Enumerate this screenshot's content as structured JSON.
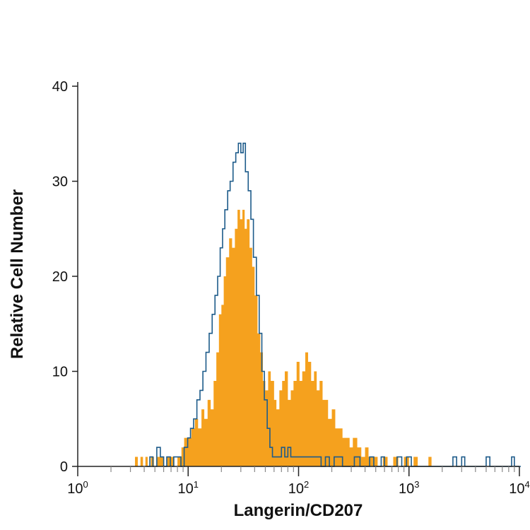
{
  "chart_data": {
    "type": "histogram",
    "xlabel": "Langerin/CD207",
    "ylabel": "Relative Cell Number",
    "x_scale": "log",
    "xlim": [
      1,
      10000
    ],
    "ylim": [
      0,
      40
    ],
    "x_ticks": [
      {
        "value": 1,
        "base": "10",
        "exp": "0"
      },
      {
        "value": 10,
        "base": "10",
        "exp": "1"
      },
      {
        "value": 100,
        "base": "10",
        "exp": "2"
      },
      {
        "value": 1000,
        "base": "10",
        "exp": "3"
      },
      {
        "value": 10000,
        "base": "10",
        "exp": "4"
      }
    ],
    "y_ticks": [
      "0",
      "10",
      "20",
      "30",
      "40"
    ],
    "colors": {
      "filled": "#f5a11e",
      "outline": "#1d5b8a"
    },
    "series": [
      {
        "style": "filled",
        "points": [
          [
            3.2,
            0
          ],
          [
            3.3,
            1
          ],
          [
            3.5,
            0
          ],
          [
            3.7,
            1
          ],
          [
            3.9,
            0
          ],
          [
            4.1,
            1
          ],
          [
            4.3,
            0
          ],
          [
            4.6,
            1
          ],
          [
            4.9,
            0
          ],
          [
            5.2,
            1
          ],
          [
            5.6,
            1
          ],
          [
            6.0,
            0
          ],
          [
            6.4,
            1
          ],
          [
            7.0,
            1
          ],
          [
            7.5,
            0
          ],
          [
            8.0,
            1
          ],
          [
            8.7,
            2
          ],
          [
            9.2,
            3
          ],
          [
            10.0,
            3
          ],
          [
            10.7,
            4
          ],
          [
            11.5,
            5
          ],
          [
            12.3,
            4
          ],
          [
            13.2,
            6
          ],
          [
            14.0,
            5
          ],
          [
            15.0,
            7
          ],
          [
            16.0,
            6
          ],
          [
            17.0,
            9
          ],
          [
            18.0,
            12
          ],
          [
            19.0,
            16
          ],
          [
            20.0,
            17
          ],
          [
            21.0,
            20
          ],
          [
            22.0,
            22
          ],
          [
            23.5,
            24
          ],
          [
            25.0,
            23
          ],
          [
            26.5,
            25
          ],
          [
            28.0,
            27
          ],
          [
            29.5,
            26
          ],
          [
            31.0,
            27
          ],
          [
            32.5,
            25
          ],
          [
            34.0,
            26
          ],
          [
            36.0,
            23
          ],
          [
            38.0,
            21
          ],
          [
            40.0,
            18
          ],
          [
            42.5,
            14
          ],
          [
            45.0,
            12
          ],
          [
            47.5,
            9
          ],
          [
            50.0,
            8
          ],
          [
            53.0,
            10
          ],
          [
            56.0,
            9
          ],
          [
            60.0,
            7
          ],
          [
            63.0,
            6
          ],
          [
            67.0,
            8
          ],
          [
            71.0,
            9
          ],
          [
            75.0,
            10
          ],
          [
            80.0,
            7
          ],
          [
            85.0,
            8
          ],
          [
            90.0,
            9
          ],
          [
            96.0,
            11
          ],
          [
            102.0,
            9
          ],
          [
            108.0,
            10
          ],
          [
            115.0,
            12
          ],
          [
            122.0,
            11
          ],
          [
            130.0,
            9
          ],
          [
            138.0,
            10
          ],
          [
            146.0,
            8
          ],
          [
            155.0,
            9
          ],
          [
            165.0,
            7
          ],
          [
            175.0,
            7
          ],
          [
            185.0,
            5
          ],
          [
            200.0,
            6
          ],
          [
            215.0,
            4
          ],
          [
            230.0,
            4
          ],
          [
            250.0,
            3
          ],
          [
            270.0,
            3
          ],
          [
            290.0,
            2
          ],
          [
            310.0,
            3
          ],
          [
            340.0,
            2
          ],
          [
            370.0,
            1
          ],
          [
            400.0,
            2
          ],
          [
            430.0,
            1
          ],
          [
            470.0,
            1
          ],
          [
            520.0,
            0
          ],
          [
            580.0,
            1
          ],
          [
            640.0,
            0
          ],
          [
            720.0,
            1
          ],
          [
            800.0,
            0
          ],
          [
            900.0,
            1
          ],
          [
            1000.0,
            0
          ],
          [
            1100.0,
            1
          ],
          [
            1200.0,
            0
          ],
          [
            1500.0,
            1
          ],
          [
            1600.0,
            0
          ]
        ]
      },
      {
        "style": "outline",
        "points": [
          [
            4.2,
            0
          ],
          [
            4.5,
            1
          ],
          [
            4.8,
            0
          ],
          [
            5.2,
            2
          ],
          [
            5.6,
            1
          ],
          [
            6.0,
            0
          ],
          [
            6.4,
            1
          ],
          [
            6.9,
            0
          ],
          [
            7.4,
            1
          ],
          [
            8.0,
            1
          ],
          [
            8.6,
            0
          ],
          [
            9.2,
            2
          ],
          [
            9.9,
            3
          ],
          [
            10.5,
            4
          ],
          [
            11.2,
            5
          ],
          [
            12.0,
            7
          ],
          [
            12.8,
            8
          ],
          [
            13.6,
            10
          ],
          [
            14.5,
            12
          ],
          [
            15.5,
            14
          ],
          [
            16.5,
            16
          ],
          [
            17.5,
            18
          ],
          [
            18.5,
            20
          ],
          [
            19.5,
            23
          ],
          [
            20.5,
            25
          ],
          [
            21.5,
            27
          ],
          [
            22.8,
            29
          ],
          [
            24.0,
            30
          ],
          [
            25.5,
            32
          ],
          [
            27.0,
            33
          ],
          [
            28.5,
            34
          ],
          [
            30.0,
            33
          ],
          [
            31.5,
            34
          ],
          [
            33.0,
            31
          ],
          [
            35.0,
            29
          ],
          [
            37.0,
            26
          ],
          [
            39.0,
            22
          ],
          [
            41.5,
            18
          ],
          [
            44.0,
            14
          ],
          [
            46.5,
            10
          ],
          [
            49.0,
            7
          ],
          [
            52.0,
            4
          ],
          [
            55.0,
            2
          ],
          [
            58.0,
            1
          ],
          [
            62.0,
            1
          ],
          [
            66.0,
            1
          ],
          [
            70.0,
            2
          ],
          [
            75.0,
            1
          ],
          [
            80.0,
            2
          ],
          [
            85.0,
            1
          ],
          [
            90.0,
            1
          ],
          [
            96.0,
            1
          ],
          [
            102.0,
            1
          ],
          [
            110.0,
            1
          ],
          [
            120.0,
            1
          ],
          [
            130.0,
            1
          ],
          [
            140.0,
            1
          ],
          [
            150.0,
            1
          ],
          [
            160.0,
            0
          ],
          [
            175.0,
            1
          ],
          [
            190.0,
            0
          ],
          [
            210.0,
            1
          ],
          [
            230.0,
            1
          ],
          [
            250.0,
            0
          ],
          [
            280.0,
            0
          ],
          [
            320.0,
            1
          ],
          [
            360.0,
            0
          ],
          [
            400.0,
            0
          ],
          [
            440.0,
            1
          ],
          [
            480.0,
            0
          ],
          [
            520.0,
            0
          ],
          [
            560.0,
            1
          ],
          [
            600.0,
            0
          ],
          [
            700.0,
            0
          ],
          [
            780.0,
            1
          ],
          [
            860.0,
            0
          ],
          [
            950.0,
            1
          ],
          [
            1050.0,
            0
          ],
          [
            1300.0,
            0
          ],
          [
            1500.0,
            0
          ],
          [
            1800.0,
            0
          ],
          [
            2200.0,
            0
          ],
          [
            2500.0,
            1
          ],
          [
            2700.0,
            0
          ],
          [
            3000.0,
            1
          ],
          [
            3200.0,
            0
          ],
          [
            4000.0,
            0
          ],
          [
            5000.0,
            1
          ],
          [
            5400.0,
            0
          ],
          [
            7000.0,
            0
          ],
          [
            8500.0,
            1
          ],
          [
            9000.0,
            0
          ],
          [
            10000.0,
            0
          ]
        ]
      }
    ]
  }
}
